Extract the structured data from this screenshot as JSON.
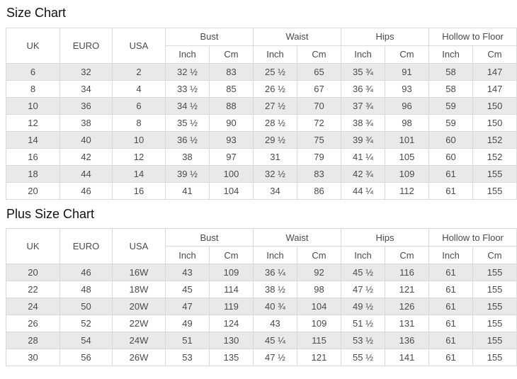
{
  "header": {
    "uk": "UK",
    "euro": "EURO",
    "usa": "USA",
    "bust": "Bust",
    "waist": "Waist",
    "hips": "Hips",
    "hollow_to_floor": "Hollow to Floor",
    "inch": "Inch",
    "cm": "Cm"
  },
  "size_chart": {
    "title": "Size Chart",
    "rows": [
      [
        "6",
        "32",
        "2",
        "32 ½",
        "83",
        "25 ½",
        "65",
        "35 ¾",
        "91",
        "58",
        "147"
      ],
      [
        "8",
        "34",
        "4",
        "33 ½",
        "85",
        "26 ½",
        "67",
        "36 ¾",
        "93",
        "58",
        "147"
      ],
      [
        "10",
        "36",
        "6",
        "34 ½",
        "88",
        "27 ½",
        "70",
        "37 ¾",
        "96",
        "59",
        "150"
      ],
      [
        "12",
        "38",
        "8",
        "35 ½",
        "90",
        "28 ½",
        "72",
        "38 ¾",
        "98",
        "59",
        "150"
      ],
      [
        "14",
        "40",
        "10",
        "36 ½",
        "93",
        "29 ½",
        "75",
        "39 ¾",
        "101",
        "60",
        "152"
      ],
      [
        "16",
        "42",
        "12",
        "38",
        "97",
        "31",
        "79",
        "41 ¼",
        "105",
        "60",
        "152"
      ],
      [
        "18",
        "44",
        "14",
        "39 ½",
        "100",
        "32 ½",
        "83",
        "42 ¾",
        "109",
        "61",
        "155"
      ],
      [
        "20",
        "46",
        "16",
        "41",
        "104",
        "34",
        "86",
        "44 ¼",
        "112",
        "61",
        "155"
      ]
    ]
  },
  "plus_size_chart": {
    "title": "Plus Size Chart",
    "rows": [
      [
        "20",
        "46",
        "16W",
        "43",
        "109",
        "36 ¼",
        "92",
        "45 ½",
        "116",
        "61",
        "155"
      ],
      [
        "22",
        "48",
        "18W",
        "45",
        "114",
        "38 ½",
        "98",
        "47 ½",
        "121",
        "61",
        "155"
      ],
      [
        "24",
        "50",
        "20W",
        "47",
        "119",
        "40 ¾",
        "104",
        "49 ½",
        "126",
        "61",
        "155"
      ],
      [
        "26",
        "52",
        "22W",
        "49",
        "124",
        "43",
        "109",
        "51 ½",
        "131",
        "61",
        "155"
      ],
      [
        "28",
        "54",
        "24W",
        "51",
        "130",
        "45 ¼",
        "115",
        "53 ½",
        "136",
        "61",
        "155"
      ],
      [
        "30",
        "56",
        "26W",
        "53",
        "135",
        "47 ½",
        "121",
        "55 ½",
        "141",
        "61",
        "155"
      ]
    ]
  },
  "colors": {
    "row_alt_background": "#e9e9e9",
    "table_border": "#d9d9d9",
    "cell_text": "#4a4a4a",
    "title_text": "#111111"
  }
}
